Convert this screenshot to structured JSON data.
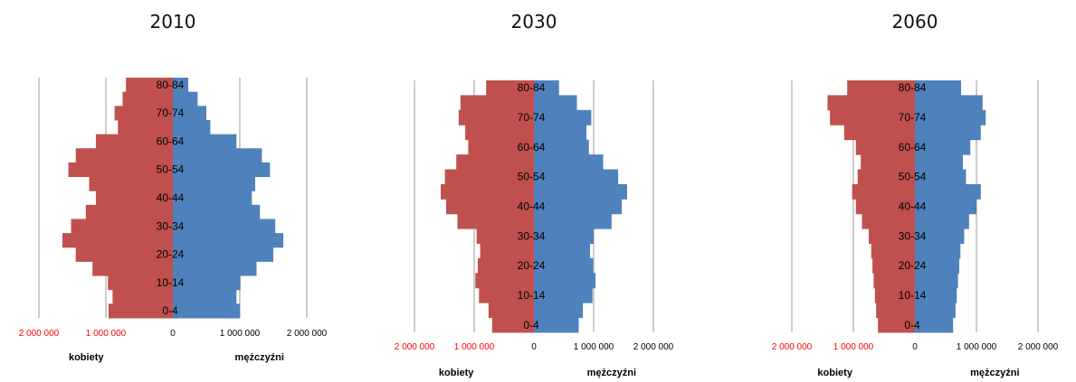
{
  "colors": {
    "women": "#C0504D",
    "men": "#4F81BD",
    "axis": "#999999",
    "label": "#000000",
    "women_tick": "#FF0000"
  },
  "chart_data": [
    {
      "type": "bar",
      "title": "2010",
      "age_groups": [
        "0-4",
        "5-9",
        "10-14",
        "15-19",
        "20-24",
        "25-29",
        "30-34",
        "35-39",
        "40-44",
        "45-49",
        "50-54",
        "55-59",
        "60-64",
        "65-69",
        "70-74",
        "75-79",
        "80-84"
      ],
      "age_labels": [
        "0-4",
        "10-14",
        "20-24",
        "30-34",
        "40-44",
        "50-54",
        "60-64",
        "70-74",
        "80-84"
      ],
      "series": [
        {
          "name": "kobiety",
          "values": [
            960000,
            900000,
            970000,
            1200000,
            1450000,
            1650000,
            1520000,
            1300000,
            1150000,
            1250000,
            1560000,
            1450000,
            1150000,
            820000,
            870000,
            750000,
            700000
          ]
        },
        {
          "name": "mężczyźni",
          "values": [
            1000000,
            950000,
            1010000,
            1250000,
            1500000,
            1650000,
            1530000,
            1300000,
            1180000,
            1230000,
            1450000,
            1330000,
            950000,
            560000,
            500000,
            370000,
            230000
          ]
        }
      ],
      "xticks": [
        "2 000 000",
        "1 000 000",
        "0",
        "1 000 000",
        "2 000 000"
      ],
      "xlabel_left": "kobiety",
      "xlabel_right": "mężczyźni",
      "xlim": [
        -2000000,
        2000000
      ]
    },
    {
      "type": "bar",
      "title": "2030",
      "age_groups": [
        "0-4",
        "5-9",
        "10-14",
        "15-19",
        "20-24",
        "25-29",
        "30-34",
        "35-39",
        "40-44",
        "45-49",
        "50-54",
        "55-59",
        "60-64",
        "65-69",
        "70-74",
        "75-79",
        "80-84"
      ],
      "age_labels": [
        "0-4",
        "10-14",
        "20-24",
        "30-34",
        "40-44",
        "50-54",
        "60-64",
        "70-74",
        "80-84"
      ],
      "series": [
        {
          "name": "kobiety",
          "values": [
            700000,
            760000,
            920000,
            980000,
            940000,
            900000,
            960000,
            1280000,
            1470000,
            1560000,
            1490000,
            1300000,
            1100000,
            1150000,
            1260000,
            1230000,
            800000
          ]
        },
        {
          "name": "mężczyźni",
          "values": [
            750000,
            820000,
            980000,
            1030000,
            990000,
            940000,
            1000000,
            1300000,
            1470000,
            1560000,
            1410000,
            1160000,
            920000,
            880000,
            960000,
            720000,
            420000
          ]
        }
      ],
      "xticks": [
        "2 000 000",
        "1 000 000",
        "0",
        "1 000 000",
        "2 000 000"
      ],
      "xlabel_left": "kobiety",
      "xlabel_right": "mężczyźni",
      "xlim": [
        -2000000,
        2000000
      ]
    },
    {
      "type": "bar",
      "title": "2060",
      "age_groups": [
        "0-4",
        "5-9",
        "10-14",
        "15-19",
        "20-24",
        "25-29",
        "30-34",
        "35-39",
        "40-44",
        "45-49",
        "50-54",
        "55-59",
        "60-64",
        "65-69",
        "70-74",
        "75-79",
        "80-84"
      ],
      "age_labels": [
        "0-4",
        "10-14",
        "20-24",
        "30-34",
        "40-44",
        "50-54",
        "60-64",
        "70-74",
        "80-84"
      ],
      "series": [
        {
          "name": "kobiety",
          "values": [
            600000,
            630000,
            650000,
            670000,
            690000,
            710000,
            750000,
            860000,
            960000,
            1020000,
            930000,
            880000,
            960000,
            1150000,
            1380000,
            1420000,
            1100000
          ]
        },
        {
          "name": "mężczyźni",
          "values": [
            620000,
            660000,
            680000,
            700000,
            720000,
            740000,
            800000,
            880000,
            1000000,
            1070000,
            830000,
            780000,
            900000,
            1070000,
            1150000,
            1100000,
            750000
          ]
        }
      ],
      "xticks": [
        "2 000 000",
        "1 000 000",
        "0",
        "1 000 000",
        "2 000 000"
      ],
      "xlabel_left": "kobiety",
      "xlabel_right": "mężczyźni",
      "xlim": [
        -2000000,
        2000000
      ]
    }
  ]
}
